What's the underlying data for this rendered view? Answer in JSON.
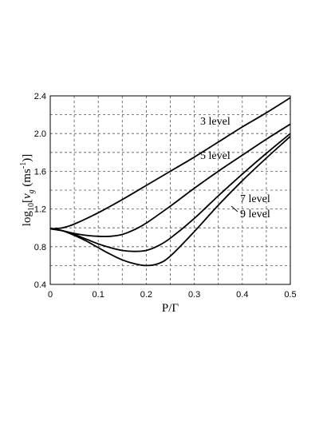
{
  "chart_data": {
    "type": "line",
    "xlabel": "P/Γ",
    "ylabel": {
      "prefix": "log",
      "sub": "10",
      "mid1": "[",
      "var": "v",
      "var_sub": "g",
      "mid2": " (ms",
      "sup": "-1",
      "suffix": ")]"
    },
    "xlim": [
      0,
      0.5
    ],
    "ylim": [
      0.4,
      2.4
    ],
    "xticks": [
      0,
      0.1,
      0.2,
      0.3,
      0.4,
      0.5
    ],
    "xtick_labels": [
      "0",
      "0.1",
      "0.2",
      "0.3",
      "0.4",
      "0.5"
    ],
    "yticks": [
      0.4,
      0.8,
      1.2,
      1.6,
      2.0,
      2.4
    ],
    "ytick_labels": [
      "0.4",
      "0.8",
      "1.2",
      "1.6",
      "2.0",
      "2.4"
    ],
    "grid": true,
    "series": [
      {
        "name": "3 level",
        "x": [
          0,
          0.025,
          0.05,
          0.1,
          0.15,
          0.2,
          0.25,
          0.3,
          0.35,
          0.4,
          0.45,
          0.5
        ],
        "y": [
          0.99,
          1.0,
          1.04,
          1.16,
          1.3,
          1.45,
          1.6,
          1.75,
          1.91,
          2.07,
          2.22,
          2.38
        ]
      },
      {
        "name": "5 level",
        "x": [
          0,
          0.025,
          0.05,
          0.075,
          0.1,
          0.125,
          0.15,
          0.175,
          0.2,
          0.25,
          0.3,
          0.35,
          0.4,
          0.45,
          0.5
        ],
        "y": [
          0.99,
          0.97,
          0.94,
          0.92,
          0.91,
          0.91,
          0.93,
          0.98,
          1.05,
          1.23,
          1.42,
          1.6,
          1.77,
          1.94,
          2.1
        ]
      },
      {
        "name": "7 level",
        "x": [
          0,
          0.025,
          0.05,
          0.075,
          0.1,
          0.125,
          0.15,
          0.175,
          0.2,
          0.225,
          0.25,
          0.3,
          0.35,
          0.4,
          0.45,
          0.5
        ],
        "y": [
          0.99,
          0.97,
          0.93,
          0.88,
          0.83,
          0.79,
          0.76,
          0.75,
          0.76,
          0.81,
          0.89,
          1.1,
          1.34,
          1.57,
          1.79,
          2.0
        ]
      },
      {
        "name": "9 level",
        "x": [
          0,
          0.025,
          0.05,
          0.075,
          0.1,
          0.125,
          0.15,
          0.175,
          0.2,
          0.225,
          0.25,
          0.3,
          0.35,
          0.4,
          0.45,
          0.5
        ],
        "y": [
          0.99,
          0.97,
          0.92,
          0.86,
          0.79,
          0.72,
          0.66,
          0.62,
          0.6,
          0.62,
          0.7,
          0.96,
          1.24,
          1.5,
          1.74,
          1.97
        ]
      }
    ],
    "annotations": [
      {
        "text": "3 level",
        "series": "3 level"
      },
      {
        "text": "5 level",
        "series": "5 level"
      },
      {
        "text": "7 level",
        "series": "7 level"
      },
      {
        "text": "9 level",
        "series": "9 level"
      }
    ]
  }
}
